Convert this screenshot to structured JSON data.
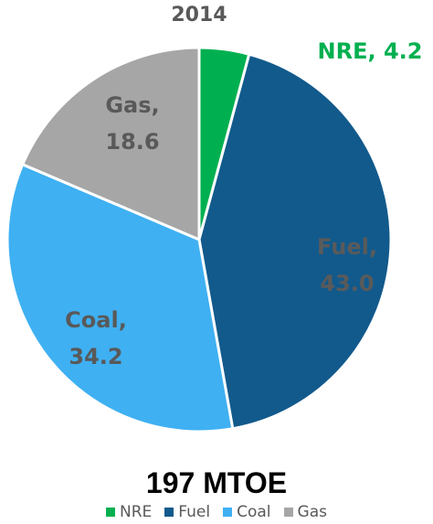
{
  "chart_data": {
    "type": "pie",
    "title": "2014",
    "subtitle": "197 MTOE",
    "categories": [
      "NRE",
      "Fuel",
      "Coal",
      "Gas"
    ],
    "values": [
      4.2,
      43.0,
      34.2,
      18.6
    ],
    "value_labels": [
      "NRE, 4.2",
      "Fuel, 43.0",
      "Coal, 34.2",
      "Gas, 18.6"
    ],
    "colors": [
      "#00b050",
      "#125a8c",
      "#3fb0f2",
      "#a6a6a6"
    ],
    "legend": "bottom"
  }
}
